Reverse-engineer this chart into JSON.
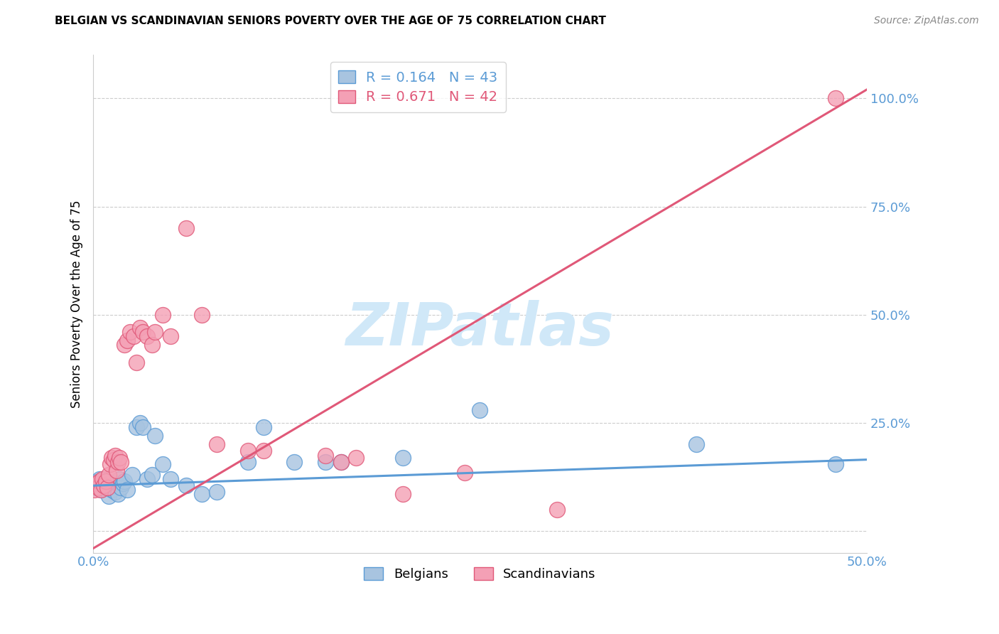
{
  "title": "BELGIAN VS SCANDINAVIAN SENIORS POVERTY OVER THE AGE OF 75 CORRELATION CHART",
  "source": "Source: ZipAtlas.com",
  "ylabel": "Seniors Poverty Over the Age of 75",
  "xlim": [
    0.0,
    0.5
  ],
  "ylim": [
    -0.05,
    1.1
  ],
  "yticks": [
    0.0,
    0.25,
    0.5,
    0.75,
    1.0
  ],
  "ytick_labels": [
    "",
    "25.0%",
    "50.0%",
    "75.0%",
    "100.0%"
  ],
  "xticks": [
    0.0,
    0.1,
    0.2,
    0.3,
    0.4,
    0.5
  ],
  "xtick_labels": [
    "0.0%",
    "",
    "",
    "",
    "",
    "50.0%"
  ],
  "belgians_R": 0.164,
  "belgians_N": 43,
  "scandinavians_R": 0.671,
  "scandinavians_N": 42,
  "belgian_color": "#a8c4e0",
  "scandinavian_color": "#f4a0b5",
  "belgian_line_color": "#5b9bd5",
  "scandinavian_line_color": "#e05878",
  "watermark": "ZIPatlas",
  "watermark_color": "#d0e8f8",
  "belgian_line_x0": 0.0,
  "belgian_line_y0": 0.105,
  "belgian_line_x1": 0.5,
  "belgian_line_y1": 0.165,
  "scandinavian_line_x0": 0.0,
  "scandinavian_line_y0": -0.04,
  "scandinavian_line_x1": 0.5,
  "scandinavian_line_y1": 1.02,
  "belgians_x": [
    0.001,
    0.002,
    0.003,
    0.004,
    0.004,
    0.005,
    0.006,
    0.007,
    0.008,
    0.009,
    0.01,
    0.011,
    0.012,
    0.013,
    0.014,
    0.015,
    0.016,
    0.017,
    0.018,
    0.019,
    0.02,
    0.022,
    0.025,
    0.028,
    0.03,
    0.032,
    0.035,
    0.038,
    0.04,
    0.045,
    0.05,
    0.06,
    0.07,
    0.08,
    0.1,
    0.11,
    0.13,
    0.15,
    0.16,
    0.2,
    0.25,
    0.39,
    0.48
  ],
  "belgians_y": [
    0.1,
    0.11,
    0.115,
    0.105,
    0.12,
    0.095,
    0.11,
    0.1,
    0.105,
    0.115,
    0.08,
    0.1,
    0.095,
    0.11,
    0.09,
    0.11,
    0.085,
    0.12,
    0.1,
    0.11,
    0.115,
    0.095,
    0.13,
    0.24,
    0.25,
    0.24,
    0.12,
    0.13,
    0.22,
    0.155,
    0.12,
    0.105,
    0.085,
    0.09,
    0.16,
    0.24,
    0.16,
    0.16,
    0.16,
    0.17,
    0.28,
    0.2,
    0.155
  ],
  "scandinavians_x": [
    0.001,
    0.002,
    0.003,
    0.004,
    0.005,
    0.006,
    0.007,
    0.008,
    0.009,
    0.01,
    0.011,
    0.012,
    0.013,
    0.014,
    0.015,
    0.016,
    0.017,
    0.018,
    0.02,
    0.022,
    0.024,
    0.026,
    0.028,
    0.03,
    0.032,
    0.035,
    0.038,
    0.04,
    0.045,
    0.05,
    0.06,
    0.07,
    0.08,
    0.1,
    0.11,
    0.15,
    0.16,
    0.17,
    0.2,
    0.24,
    0.3,
    0.48
  ],
  "scandinavians_y": [
    0.095,
    0.11,
    0.1,
    0.115,
    0.095,
    0.12,
    0.105,
    0.115,
    0.1,
    0.13,
    0.155,
    0.17,
    0.165,
    0.175,
    0.14,
    0.16,
    0.17,
    0.16,
    0.43,
    0.44,
    0.46,
    0.45,
    0.39,
    0.47,
    0.46,
    0.45,
    0.43,
    0.46,
    0.5,
    0.45,
    0.7,
    0.5,
    0.2,
    0.185,
    0.185,
    0.175,
    0.16,
    0.17,
    0.085,
    0.135,
    0.05,
    1.0
  ]
}
